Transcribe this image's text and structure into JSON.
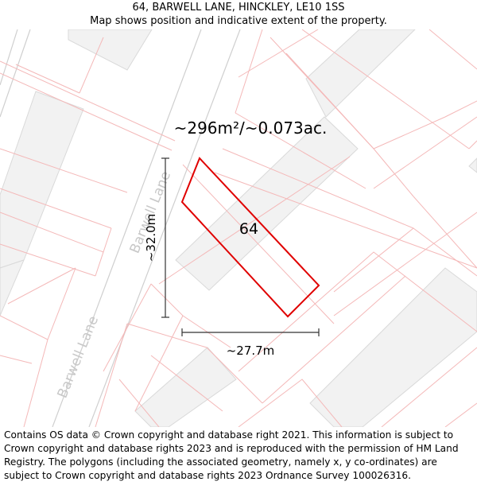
{
  "header": {
    "address": "64, BARWELL LANE, HINCKLEY, LE10 1SS",
    "subtitle": "Map shows position and indicative extent of the property."
  },
  "map": {
    "area_label": "~296m²/~0.073ac.",
    "plot_number": "64",
    "height_label": "~32.0m",
    "width_label": "~27.7m",
    "street_labels": [
      "Barwell Lane",
      "Barwell Lane"
    ],
    "colors": {
      "boundary": "#e00000",
      "parcel_line": "#f4b8b8",
      "building_fill": "#f2f2f2",
      "building_stroke": "#d9d9d9",
      "road_edge": "#cfcfcf",
      "road_label": "#c8c8c8",
      "dimension": "#333333"
    }
  },
  "footer": {
    "attribution": "Contains OS data © Crown copyright and database right 2021. This information is subject to Crown copyright and database rights 2023 and is reproduced with the permission of HM Land Registry. The polygons (including the associated geometry, namely x, y co-ordinates) are subject to Crown copyright and database rights 2023 Ordnance Survey 100026316."
  }
}
